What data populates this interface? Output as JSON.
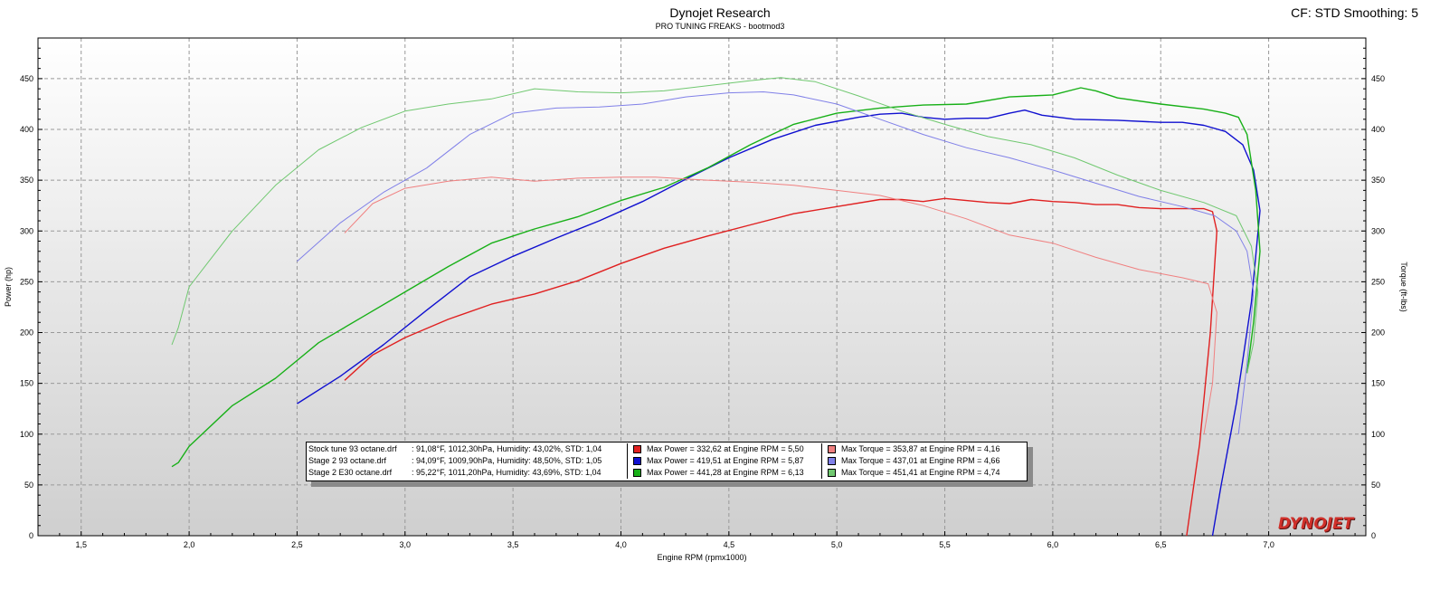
{
  "header": {
    "title": "Dynojet Research",
    "subtitle": "PRO TUNING FREAKS - bootmod3",
    "cf_info": "CF: STD Smoothing: 5"
  },
  "logo_text": "DYNOJET",
  "chart_data": {
    "type": "line",
    "xlabel": "Engine RPM (rpmx1000)",
    "ylabel": "Power (hp)",
    "y2label": "Torque (ft-lbs)",
    "xlim": [
      1.3,
      7.45
    ],
    "ylim": [
      0,
      490
    ],
    "y2lim": [
      0,
      490
    ],
    "x_ticks": [
      "1,5",
      "2,0",
      "2,5",
      "3,0",
      "3,5",
      "4,0",
      "4,5",
      "5,0",
      "5,5",
      "6,0",
      "6,5",
      "7,0"
    ],
    "x_tick_values": [
      1.5,
      2.0,
      2.5,
      3.0,
      3.5,
      4.0,
      4.5,
      5.0,
      5.5,
      6.0,
      6.5,
      7.0
    ],
    "y_ticks": [
      0,
      50,
      100,
      150,
      200,
      250,
      300,
      350,
      400,
      450
    ],
    "grid": true,
    "series": [
      {
        "name": "Stock tune 93 octane.drf",
        "metric": "power",
        "color": "#e02020",
        "x": [
          2.72,
          2.85,
          3.0,
          3.2,
          3.4,
          3.6,
          3.8,
          4.0,
          4.2,
          4.4,
          4.6,
          4.8,
          5.0,
          5.2,
          5.3,
          5.4,
          5.5,
          5.6,
          5.7,
          5.8,
          5.9,
          6.0,
          6.1,
          6.2,
          6.3,
          6.4,
          6.5,
          6.6,
          6.7,
          6.74,
          6.76,
          6.73,
          6.68,
          6.62
        ],
        "y": [
          153,
          178,
          195,
          213,
          228,
          238,
          251,
          268,
          283,
          295,
          306,
          317,
          324,
          331,
          331,
          329,
          332,
          330,
          328,
          327,
          331,
          329,
          328,
          326,
          326,
          323,
          322,
          322,
          322,
          319,
          300,
          200,
          90,
          0
        ]
      },
      {
        "name": "Stage 2 93 octane.drf",
        "metric": "power",
        "color": "#1010d0",
        "x": [
          2.5,
          2.7,
          2.9,
          3.1,
          3.3,
          3.5,
          3.7,
          3.9,
          4.1,
          4.3,
          4.5,
          4.7,
          4.9,
          5.1,
          5.2,
          5.3,
          5.4,
          5.5,
          5.6,
          5.7,
          5.8,
          5.87,
          5.95,
          6.1,
          6.3,
          6.5,
          6.6,
          6.7,
          6.8,
          6.88,
          6.93,
          6.96,
          6.92,
          6.85,
          6.78,
          6.74
        ],
        "y": [
          130,
          157,
          188,
          222,
          255,
          275,
          293,
          310,
          329,
          351,
          372,
          390,
          404,
          412,
          415,
          416,
          412,
          410,
          411,
          411,
          416,
          419,
          414,
          410,
          409,
          407,
          407,
          404,
          398,
          385,
          360,
          320,
          230,
          130,
          50,
          0
        ]
      },
      {
        "name": "Stage 2 E30 octane.drf",
        "metric": "power",
        "color": "#18b018",
        "x": [
          1.92,
          1.95,
          2.0,
          2.2,
          2.4,
          2.6,
          2.8,
          3.0,
          3.2,
          3.4,
          3.6,
          3.8,
          4.0,
          4.2,
          4.4,
          4.6,
          4.8,
          5.0,
          5.2,
          5.4,
          5.6,
          5.8,
          5.9,
          6.0,
          6.13,
          6.2,
          6.3,
          6.5,
          6.7,
          6.8,
          6.86,
          6.9,
          6.94,
          6.96,
          6.93,
          6.9
        ],
        "y": [
          68,
          72,
          88,
          128,
          155,
          190,
          215,
          240,
          265,
          288,
          302,
          314,
          330,
          343,
          362,
          385,
          405,
          416,
          421,
          424,
          425,
          432,
          433,
          434,
          441,
          438,
          431,
          425,
          420,
          416,
          412,
          395,
          340,
          280,
          210,
          160
        ]
      },
      {
        "name": "Stock tune 93 octane.drf",
        "metric": "torque",
        "color": "#f08080",
        "x": [
          2.72,
          2.85,
          3.0,
          3.2,
          3.4,
          3.6,
          3.8,
          4.0,
          4.16,
          4.4,
          4.6,
          4.8,
          5.0,
          5.2,
          5.4,
          5.6,
          5.8,
          6.0,
          6.2,
          6.4,
          6.6,
          6.72,
          6.76,
          6.74,
          6.7
        ],
        "y": [
          298,
          327,
          342,
          349,
          353,
          349,
          352,
          353,
          353,
          350,
          348,
          345,
          340,
          335,
          325,
          312,
          296,
          288,
          274,
          262,
          254,
          248,
          220,
          150,
          100
        ]
      },
      {
        "name": "Stage 2 93 octane.drf",
        "metric": "torque",
        "color": "#8080e8",
        "x": [
          2.5,
          2.7,
          2.9,
          3.1,
          3.3,
          3.5,
          3.7,
          3.9,
          4.1,
          4.3,
          4.5,
          4.66,
          4.8,
          5.0,
          5.2,
          5.4,
          5.6,
          5.8,
          6.0,
          6.2,
          6.4,
          6.6,
          6.75,
          6.85,
          6.9,
          6.93,
          6.9,
          6.86
        ],
        "y": [
          270,
          308,
          338,
          362,
          395,
          416,
          421,
          422,
          425,
          432,
          436,
          437,
          434,
          425,
          410,
          395,
          382,
          372,
          360,
          347,
          334,
          324,
          315,
          300,
          280,
          240,
          170,
          100
        ]
      },
      {
        "name": "Stage 2 E30 octane.drf",
        "metric": "torque",
        "color": "#70c870",
        "x": [
          1.92,
          1.95,
          2.0,
          2.2,
          2.4,
          2.6,
          2.8,
          3.0,
          3.2,
          3.4,
          3.6,
          3.8,
          4.0,
          4.2,
          4.4,
          4.6,
          4.74,
          4.9,
          5.1,
          5.3,
          5.5,
          5.7,
          5.9,
          6.1,
          6.3,
          6.5,
          6.7,
          6.85,
          6.92,
          6.95,
          6.93,
          6.9
        ],
        "y": [
          188,
          205,
          245,
          300,
          345,
          380,
          402,
          418,
          425,
          430,
          440,
          437,
          436,
          438,
          443,
          448,
          451,
          447,
          433,
          418,
          405,
          393,
          385,
          372,
          355,
          340,
          328,
          315,
          285,
          240,
          190,
          160
        ]
      }
    ],
    "legend": {
      "placement": "bottom-center",
      "rows": [
        {
          "file": "Stock tune 93 octane.drf",
          "conditions": ":  91,08°F, 1012,30hPa, Humidity: 43,02%, STD: 1,04",
          "power": "Max Power = 332,62 at Engine RPM = 5,50",
          "torque": "Max Torque = 353,87 at Engine RPM = 4,16",
          "power_color": "#e02020",
          "torque_color": "#f08080"
        },
        {
          "file": "Stage 2 93 octane.drf",
          "conditions": ":  94,09°F, 1009,90hPa, Humidity: 48,50%, STD: 1,05",
          "power": "Max Power = 419,51 at Engine RPM = 5,87",
          "torque": "Max Torque = 437,01 at Engine RPM = 4,66",
          "power_color": "#1010d0",
          "torque_color": "#8080e8"
        },
        {
          "file": "Stage 2 E30 octane.drf",
          "conditions": ":  95,22°F, 1011,20hPa, Humidity: 43,69%, STD: 1,04",
          "power": "Max Power = 441,28 at Engine RPM = 6,13",
          "torque": "Max Torque = 451,41 at Engine RPM = 4,74",
          "power_color": "#18b018",
          "torque_color": "#70c870"
        }
      ]
    }
  }
}
